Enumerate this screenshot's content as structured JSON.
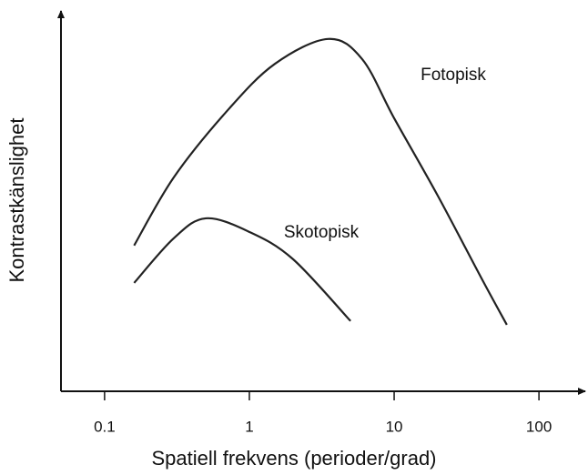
{
  "chart_data": {
    "type": "line",
    "x_label": "Spatiell frekvens (perioder/grad)",
    "y_label": "Kontrastkänslighet",
    "xscale": "log",
    "xlim": [
      0.05,
      200
    ],
    "xticks": [
      0.1,
      1,
      10,
      100
    ],
    "ylim": [
      0,
      100
    ],
    "grid": false,
    "series": [
      {
        "name": "Fotopisk",
        "color": "#222222",
        "x": [
          0.16,
          0.3,
          0.7,
          1.5,
          3.5,
          6,
          10,
          20,
          40,
          60
        ],
        "values": [
          38.6,
          56.6,
          74.2,
          86.7,
          93.3,
          88,
          72.3,
          51.8,
          30,
          17.6
        ]
      },
      {
        "name": "Skotopisk",
        "color": "#222222",
        "x": [
          0.16,
          0.3,
          0.5,
          1,
          2,
          5
        ],
        "values": [
          28.7,
          40.5,
          45.8,
          42.2,
          35,
          18.6
        ]
      }
    ]
  }
}
